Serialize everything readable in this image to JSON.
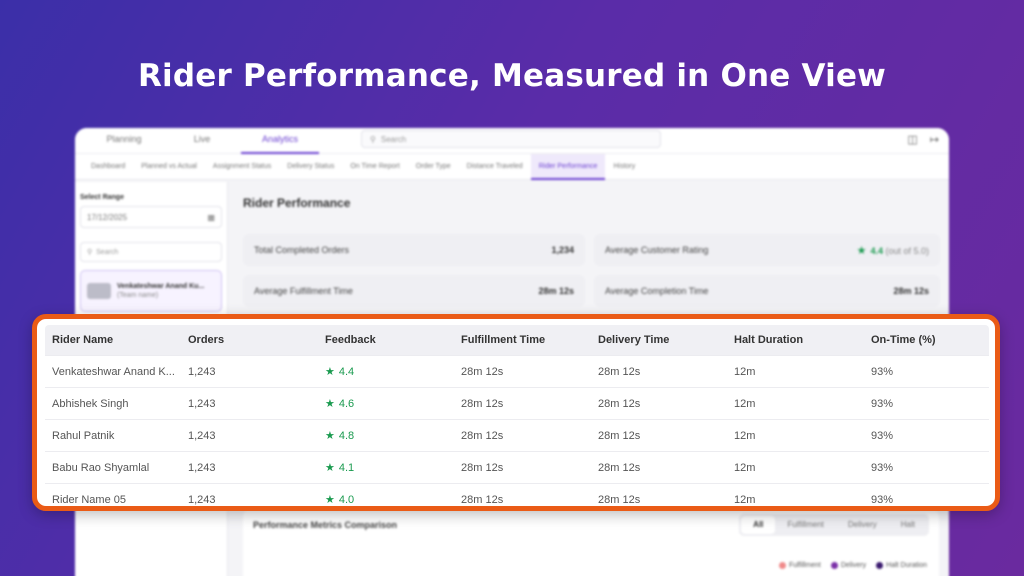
{
  "headline": "Rider Performance, Measured in One View",
  "top_tabs": [
    "Planning",
    "Live",
    "Analytics"
  ],
  "active_top_tab": "Analytics",
  "search_placeholder": "Search",
  "sub_tabs": [
    "Dashboard",
    "Planned vs Actual",
    "Assignment Status",
    "Delivery Status",
    "On Time Report",
    "Order Type",
    "Distance Traveled",
    "Rider Performance",
    "History"
  ],
  "active_sub_tab": "Rider Performance",
  "sidebar": {
    "range_label": "Select Range",
    "date_value": "17/12/2025",
    "search_placeholder": "Search",
    "member_name": "Venkateshwar Anand Ku...",
    "member_team": "(Team name)"
  },
  "main": {
    "title": "Rider Performance",
    "cards": {
      "total_orders_label": "Total Completed Orders",
      "total_orders_value": "1,234",
      "rating_label": "Average Customer Rating",
      "rating_value": "4.4",
      "rating_suffix": "(out of 5.0)",
      "fulfillment_label": "Average Fulfillment Time",
      "fulfillment_value": "28m 12s",
      "completion_label": "Average Completion Time",
      "completion_value": "28m 12s"
    },
    "comparison": {
      "title": "Performance Metrics Comparison",
      "segments": [
        "All",
        "Fulfillment",
        "Delivery",
        "Halt"
      ],
      "legend": [
        {
          "label": "Fulfillment",
          "color": "#f08a8a"
        },
        {
          "label": "Delivery",
          "color": "#7b2fa8"
        },
        {
          "label": "Halt Duration",
          "color": "#3a1a6e"
        }
      ]
    }
  },
  "table": {
    "headers": [
      "Rider Name",
      "Orders",
      "Feedback",
      "Fulfillment Time",
      "Delivery Time",
      "Halt Duration",
      "On-Time (%)"
    ],
    "rows": [
      [
        "Venkateshwar Anand K...",
        "1,243",
        "4.4",
        "28m 12s",
        "28m 12s",
        "12m",
        "93%"
      ],
      [
        "Abhishek Singh",
        "1,243",
        "4.6",
        "28m 12s",
        "28m 12s",
        "12m",
        "93%"
      ],
      [
        "Rahul Patnik",
        "1,243",
        "4.8",
        "28m 12s",
        "28m 12s",
        "12m",
        "93%"
      ],
      [
        "Babu Rao Shyamlal",
        "1,243",
        "4.1",
        "28m 12s",
        "28m 12s",
        "12m",
        "93%"
      ],
      [
        "Rider Name 05",
        "1,243",
        "4.0",
        "28m 12s",
        "28m 12s",
        "12m",
        "93%"
      ]
    ]
  },
  "accent_color": "#ea5b16",
  "brand_color": "#6a3fd1"
}
